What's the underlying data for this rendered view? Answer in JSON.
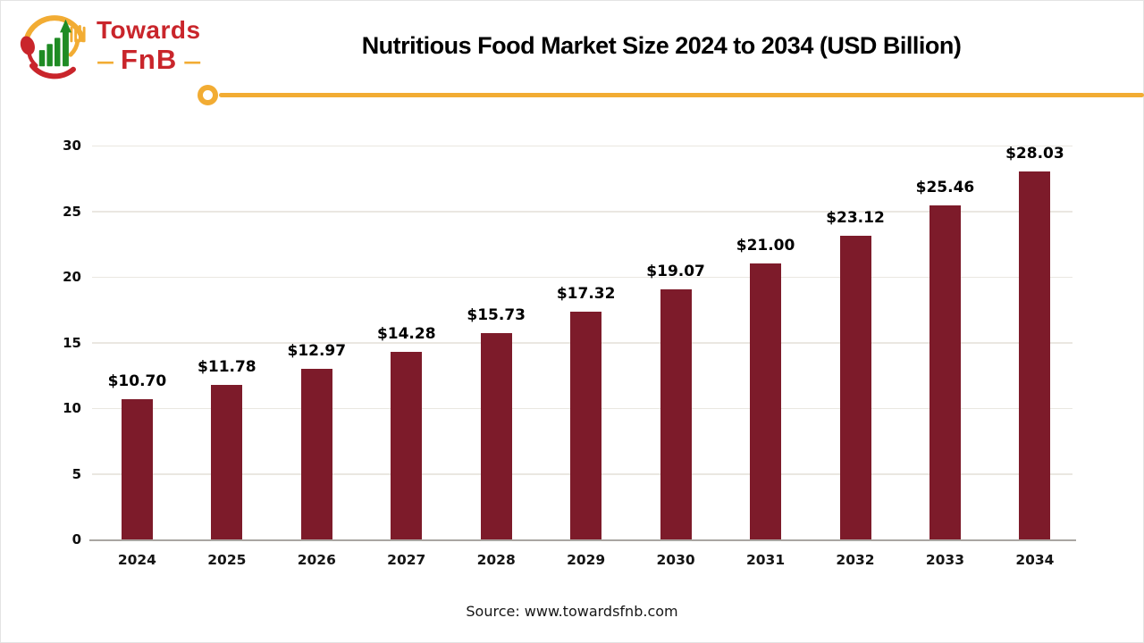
{
  "header": {
    "logo": {
      "name1": "Towards",
      "name2": "FnB",
      "dash_left": "—",
      "dash_right": "—",
      "red": "#c9252b",
      "yellow": "#f2ac33",
      "green": "#1f8b24"
    },
    "title": "Nutritious Food Market Size 2024 to 2034 (USD Billion)",
    "accent_color": "#f2ac33"
  },
  "chart_data": {
    "type": "bar",
    "title": "Nutritious Food Market Size 2024 to 2034 (USD Billion)",
    "categories": [
      "2024",
      "2025",
      "2026",
      "2027",
      "2028",
      "2029",
      "2030",
      "2031",
      "2032",
      "2033",
      "2034"
    ],
    "values": [
      10.7,
      11.78,
      12.97,
      14.28,
      15.73,
      17.32,
      19.07,
      21.0,
      23.12,
      25.46,
      28.03
    ],
    "value_labels": [
      "$10.70",
      "$11.78",
      "$12.97",
      "$14.28",
      "$15.73",
      "$17.32",
      "$19.07",
      "$21.00",
      "$23.12",
      "$25.46",
      "$28.03"
    ],
    "ylim": [
      0,
      30
    ],
    "yticks": [
      0,
      5,
      10,
      15,
      20,
      25,
      30
    ],
    "bar_color": "#7d1b2a",
    "grid": true,
    "legend": "none",
    "xlabel": "",
    "ylabel": ""
  },
  "footer": {
    "source": "Source: www.towardsfnb.com"
  }
}
